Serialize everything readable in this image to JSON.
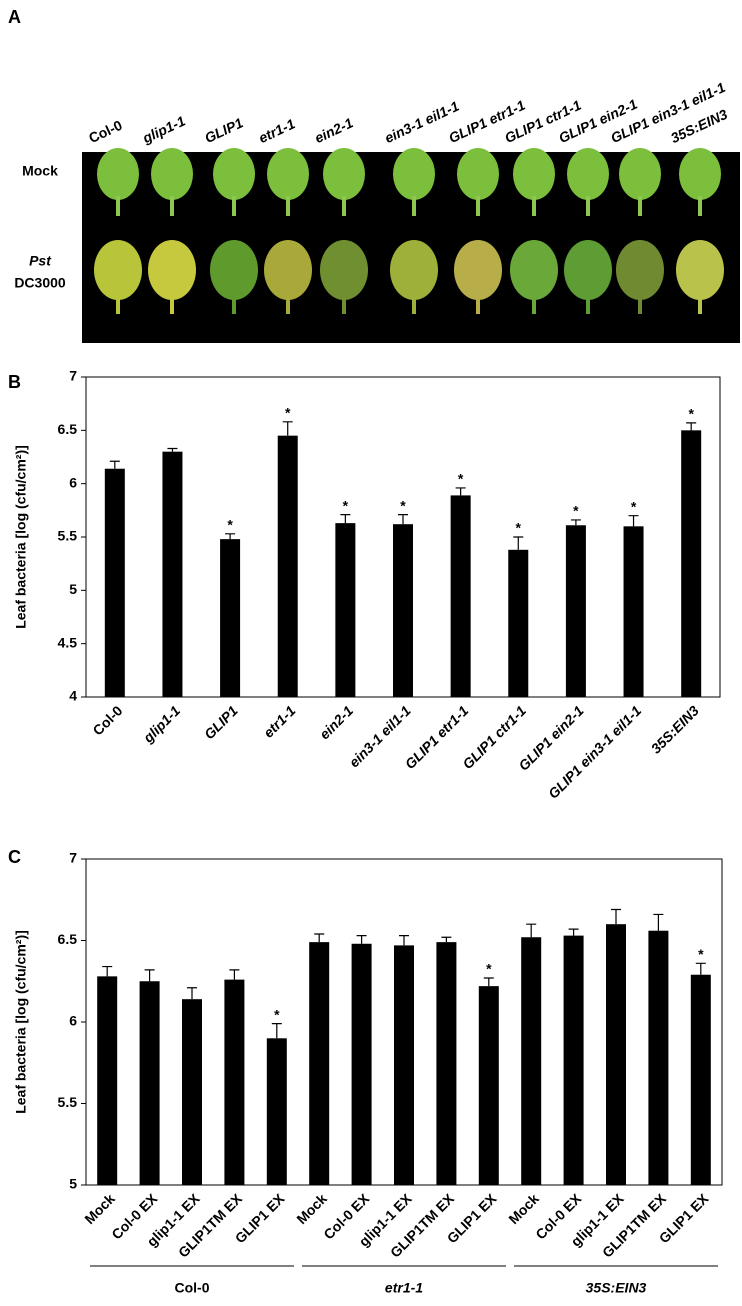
{
  "photo_panel": {
    "label": "A",
    "columns": [
      "Col-0",
      "glip1-1",
      "GLIP1",
      "etr1-1",
      "ein2-1",
      "ein3-1 eil1-1",
      "GLIP1 etr1-1",
      "GLIP1 ctr1-1",
      "GLIP1 ein2-1",
      "GLIP1 ein3-1 eil1-1",
      "35S:EIN3"
    ],
    "rows": [
      [
        "Mock"
      ],
      [
        "Pst",
        "DC3000"
      ]
    ]
  },
  "chart_data": [
    {
      "type": "bar",
      "panel_label": "B",
      "y_label": "Leaf bacteria [log (cfu/cm²)]",
      "categories": [
        "Col-0",
        "glip1-1",
        "GLIP1",
        "etr1-1",
        "ein2-1",
        "ein3-1 eil1-1",
        "GLIP1 etr1-1",
        "GLIP1 ctr1-1",
        "GLIP1 ein2-1",
        "GLIP1 ein3-1 eil1-1",
        "35S:EIN3"
      ],
      "label_italic": [
        false,
        true,
        true,
        true,
        true,
        true,
        true,
        true,
        true,
        true,
        true
      ],
      "values": [
        6.14,
        6.3,
        5.48,
        6.45,
        5.63,
        5.62,
        5.89,
        5.38,
        5.61,
        5.6,
        6.5
      ],
      "errors": [
        0.07,
        0.03,
        0.05,
        0.13,
        0.08,
        0.09,
        0.07,
        0.12,
        0.05,
        0.1,
        0.07
      ],
      "marked": [
        false,
        false,
        true,
        true,
        true,
        true,
        true,
        true,
        true,
        true,
        true
      ],
      "marker_label": "*",
      "color": "#000000",
      "ylim": [
        4,
        7
      ],
      "yticks": [
        4,
        4.5,
        5,
        5.5,
        6,
        6.5,
        7
      ]
    },
    {
      "type": "grouped_bar",
      "panel_label": "C",
      "y_label": "Leaf bacteria [log (cfu/cm²)]",
      "groups": [
        {
          "name": "Col-0",
          "italic": false,
          "categories": [
            "Mock",
            "Col-0 EX",
            "glip1-1 EX",
            "GLIP1TM EX",
            "GLIP1 EX"
          ],
          "values": [
            6.28,
            6.25,
            6.14,
            6.26,
            5.9
          ],
          "errors": [
            0.06,
            0.07,
            0.07,
            0.06,
            0.09
          ],
          "marked": [
            false,
            false,
            false,
            false,
            true
          ]
        },
        {
          "name": "etr1-1",
          "italic": true,
          "categories": [
            "Mock",
            "Col-0 EX",
            "glip1-1 EX",
            "GLIP1TM EX",
            "GLIP1 EX"
          ],
          "values": [
            6.49,
            6.48,
            6.47,
            6.49,
            6.22
          ],
          "errors": [
            0.05,
            0.05,
            0.06,
            0.03,
            0.05
          ],
          "marked": [
            false,
            false,
            false,
            false,
            true
          ]
        },
        {
          "name": "35S:EIN3",
          "italic": true,
          "categories": [
            "Mock",
            "Col-0 EX",
            "glip1-1 EX",
            "GLIP1TM EX",
            "GLIP1 EX"
          ],
          "values": [
            6.52,
            6.53,
            6.6,
            6.56,
            6.29
          ],
          "errors": [
            0.08,
            0.04,
            0.09,
            0.1,
            0.07
          ],
          "marked": [
            false,
            false,
            false,
            false,
            true
          ]
        }
      ],
      "marker_label": "*",
      "color": "#000000",
      "ylim": [
        5,
        7
      ],
      "yticks": [
        5,
        5.5,
        6,
        6.5,
        7
      ]
    }
  ]
}
